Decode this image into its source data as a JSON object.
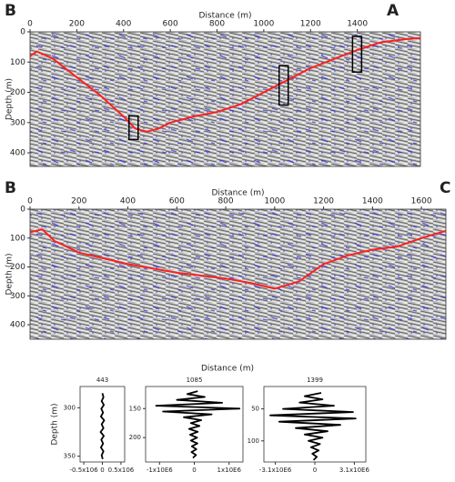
{
  "chart_data": [
    {
      "type": "line",
      "left_label": "B",
      "right_label": "A",
      "xlabel": "Distance (m)",
      "ylabel": "Depth (m)",
      "xlim": [
        0,
        1670
      ],
      "xticks": [
        0,
        200,
        400,
        600,
        800,
        1000,
        1200,
        1400
      ],
      "ylim": [
        0,
        445
      ],
      "yticks": [
        0,
        100,
        200,
        300,
        400
      ],
      "series": [
        {
          "color": "#ff2020",
          "x": [
            0,
            30,
            100,
            200,
            300,
            400,
            450,
            500,
            550,
            600,
            700,
            800,
            900,
            1000,
            1100,
            1200,
            1300,
            1400,
            1500,
            1600,
            1670
          ],
          "values": [
            80,
            65,
            90,
            150,
            210,
            280,
            320,
            330,
            320,
            300,
            280,
            265,
            240,
            200,
            160,
            120,
            90,
            60,
            35,
            25,
            20
          ]
        }
      ]
    },
    {
      "type": "line",
      "left_label": "B",
      "right_label": "C",
      "xlabel": "Distance (m)",
      "ylabel": "Depth (m)",
      "xlim": [
        0,
        1700
      ],
      "xticks": [
        0,
        200,
        400,
        600,
        800,
        1000,
        1200,
        1400,
        1600
      ],
      "ylim": [
        0,
        450
      ],
      "yticks": [
        0,
        100,
        200,
        300,
        400
      ],
      "series": [
        {
          "color": "#ff2020",
          "x": [
            0,
            50,
            100,
            200,
            400,
            600,
            800,
            900,
            1000,
            1100,
            1200,
            1300,
            1400,
            1500,
            1600,
            1700
          ],
          "values": [
            80,
            70,
            110,
            150,
            190,
            220,
            240,
            255,
            275,
            250,
            190,
            160,
            140,
            130,
            100,
            75
          ]
        }
      ]
    },
    {
      "type": "trace",
      "title": 443,
      "ylabel": "Depth (m)",
      "xlim": [
        -600000,
        600000
      ],
      "xticks": [
        {
          "value": -500000,
          "label": "-0.5x106"
        },
        0,
        {
          "value": 500000,
          "label": "0.5x106"
        }
      ],
      "ylim": [
        278,
        356
      ],
      "yticks": [
        300,
        350
      ],
      "series": [
        {
          "color": "#000000",
          "x": [
            0,
            30000,
            -20000,
            40000,
            -30000,
            20000,
            -40000,
            50000,
            -20000,
            30000,
            -50000,
            40000,
            -30000,
            20000,
            -40000,
            30000,
            -20000,
            10000
          ],
          "values": [
            285,
            289,
            293,
            297,
            301,
            305,
            309,
            313,
            317,
            321,
            325,
            329,
            333,
            337,
            341,
            345,
            349,
            353
          ]
        }
      ]
    },
    {
      "type": "trace",
      "title": 1085,
      "xlim": [
        -1400000,
        1400000
      ],
      "xticks": [
        {
          "value": -1000000,
          "label": "-1x10E6"
        },
        0,
        {
          "value": 1000000,
          "label": "1x10E6"
        }
      ],
      "ylim": [
        112,
        242
      ],
      "yticks": [
        150,
        200
      ],
      "series": [
        {
          "color": "#000000",
          "x": [
            100000,
            -200000,
            300000,
            -500000,
            800000,
            -1100000,
            1300000,
            -900000,
            500000,
            -300000,
            200000,
            -100000,
            150000,
            -150000,
            100000,
            -120000,
            80000,
            -100000,
            90000,
            -70000,
            60000,
            -80000,
            50000,
            -40000
          ],
          "values": [
            120,
            125,
            130,
            135,
            140,
            145,
            150,
            155,
            160,
            165,
            170,
            175,
            180,
            185,
            190,
            195,
            200,
            205,
            210,
            215,
            220,
            225,
            230,
            235
          ]
        }
      ]
    },
    {
      "type": "trace",
      "title": 1399,
      "xlim": [
        -4000000,
        4000000
      ],
      "xticks": [
        {
          "value": -3100000,
          "label": "-3.1x10E6"
        },
        0,
        {
          "value": 3100000,
          "label": "3.1x10E6"
        }
      ],
      "ylim": [
        15,
        133
      ],
      "yticks": [
        50,
        100
      ],
      "series": [
        {
          "color": "#000000",
          "x": [
            500000,
            -800000,
            600000,
            -1200000,
            1500000,
            -2500000,
            3000000,
            -3500000,
            3200000,
            -2800000,
            2000000,
            -1500000,
            1000000,
            -800000,
            600000,
            -500000,
            400000,
            -300000,
            300000,
            -200000,
            150000,
            -100000
          ],
          "values": [
            25,
            30,
            35,
            40,
            45,
            50,
            55,
            60,
            65,
            70,
            75,
            80,
            85,
            90,
            95,
            100,
            105,
            110,
            115,
            120,
            125,
            130
          ]
        }
      ]
    }
  ],
  "trace_axis_label": "Distance (m)"
}
